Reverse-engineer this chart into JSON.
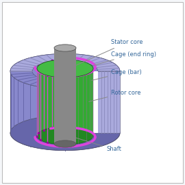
{
  "background_color": "#f5f7fa",
  "border_color": "#bbbbbb",
  "labels": {
    "stator_core": "Stator core",
    "cage_end_ring": "Cage (end ring)",
    "cage_bar": "Cage (bar)",
    "rotor_core": "Rotor core",
    "shaft": "Shaft"
  },
  "colors": {
    "stator_face": "#8888cc",
    "stator_side_left": "#7070aa",
    "stator_side_right": "#9999cc",
    "stator_bottom": "#6666aa",
    "stator_cut_face": "#aaaadd",
    "stator_cut_inner": "#9999bb",
    "slot_line": "#6666aa",
    "slot_dark": "#5555aa",
    "rotor_top": "#44bb44",
    "rotor_side": "#33aa33",
    "rotor_dark": "#228822",
    "cage_color": "#dd44dd",
    "shaft_top": "#aaaaaa",
    "shaft_side": "#888888",
    "shaft_dark": "#666666",
    "annotation_line": "#888888",
    "label_color": "#336699"
  }
}
